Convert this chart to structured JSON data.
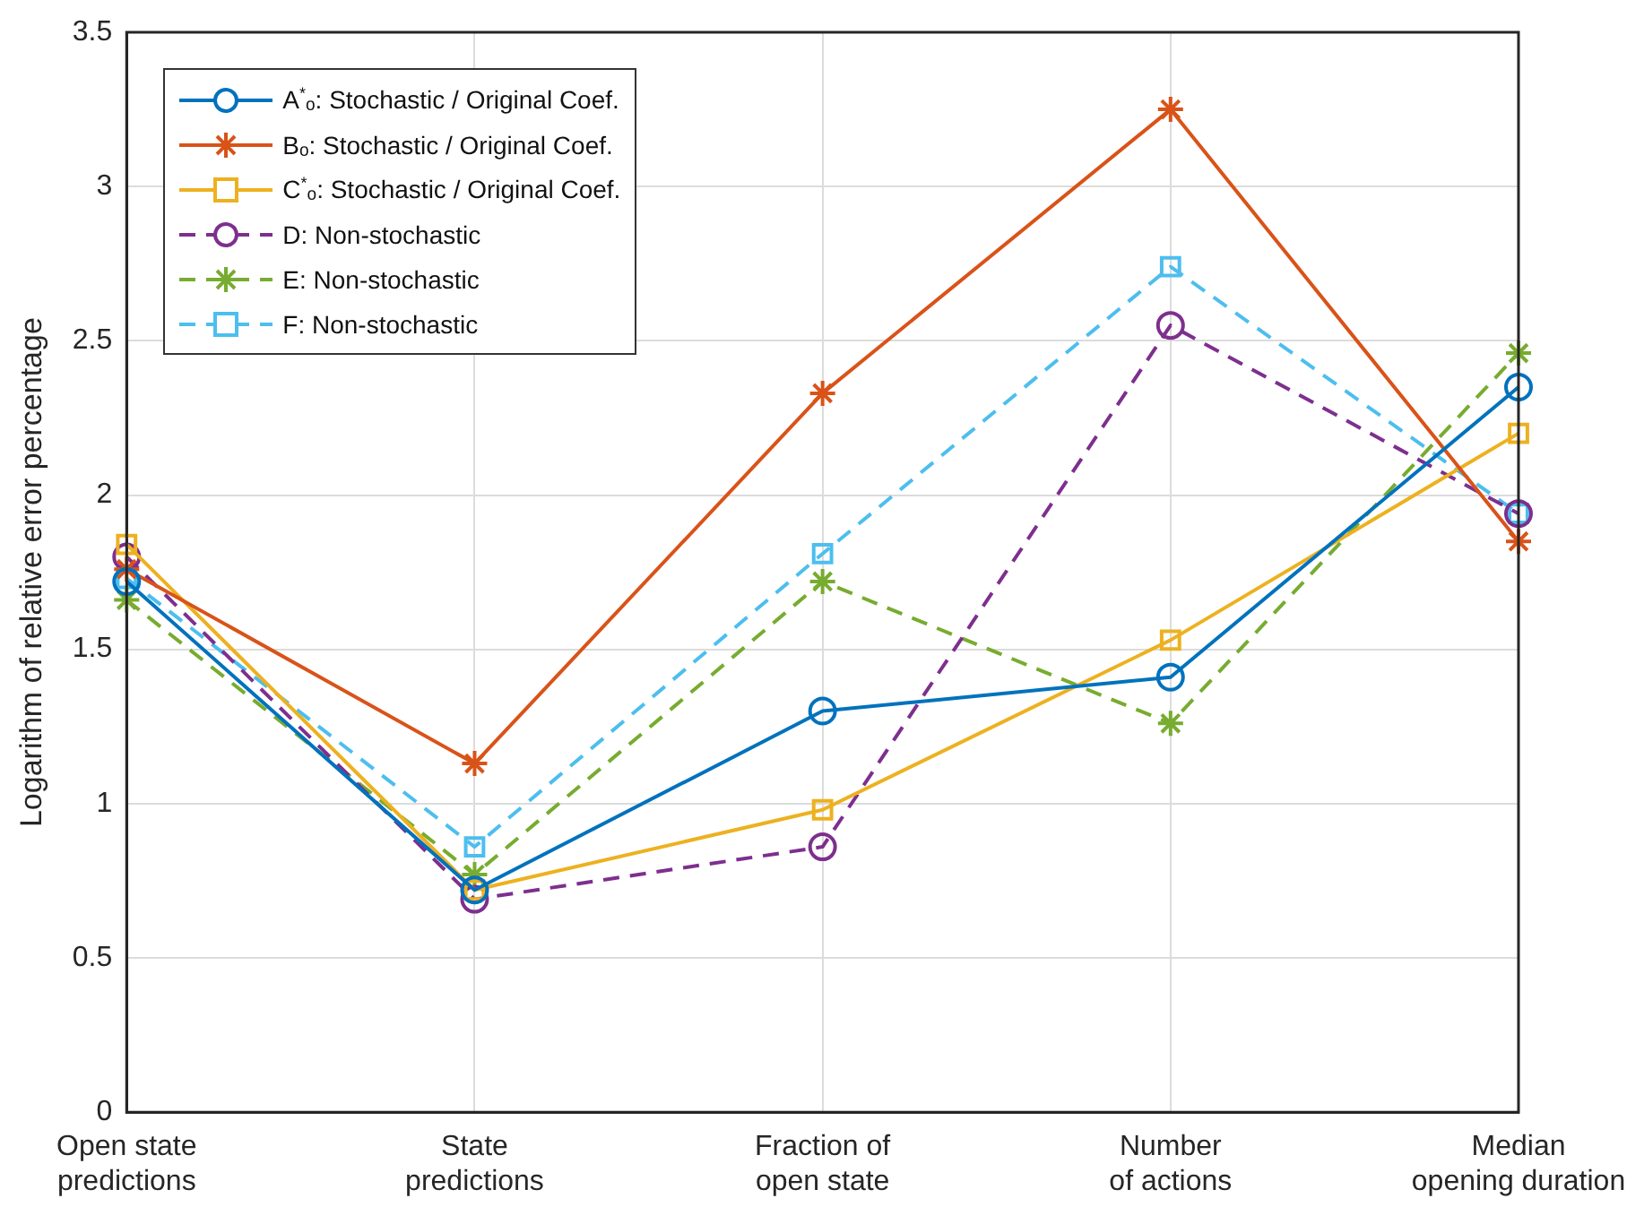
{
  "chart_data": {
    "type": "line",
    "ylabel": "Logarithm of relative error percentage",
    "categories": [
      "Open state\npredictions",
      "State\npredictions",
      "Fraction of\nopen state",
      "Number\nof actions",
      "Median\nopening duration"
    ],
    "ylim": [
      0,
      3.5
    ],
    "yticks": [
      0,
      0.5,
      1,
      1.5,
      2,
      2.5,
      3,
      3.5
    ],
    "grid": true,
    "legend": "top left",
    "series": [
      {
        "name": "A$^{*}$ₒ: Stochastic / Original Coef.",
        "color": "#0072bd",
        "marker": "circle",
        "line_style": "solid",
        "values": [
          1.72,
          0.72,
          1.3,
          1.41,
          2.35
        ]
      },
      {
        "name": "Bₒ: Stochastic / Original Coef.",
        "color": "#d95319",
        "marker": "cross",
        "line_style": "solid",
        "values": [
          1.76,
          1.13,
          2.33,
          3.25,
          1.85
        ]
      },
      {
        "name": "C$^{*}$ₒ: Stochastic / Original Coef.",
        "color": "#edb120",
        "marker": "square",
        "line_style": "solid",
        "values": [
          1.84,
          0.72,
          0.98,
          1.53,
          2.2
        ]
      },
      {
        "name": "D: Non-stochastic",
        "color": "#7e2f8e",
        "marker": "circle",
        "line_style": "dashed",
        "values": [
          1.8,
          0.69,
          0.86,
          2.55,
          1.94
        ]
      },
      {
        "name": "E: Non-stochastic",
        "color": "#77ac30",
        "marker": "cross",
        "line_style": "dashed",
        "values": [
          1.66,
          0.77,
          1.72,
          1.26,
          2.46
        ]
      },
      {
        "name": "F: Non-stochastic",
        "color": "#4dbeee",
        "marker": "square",
        "line_style": "dashed",
        "values": [
          1.73,
          0.86,
          1.81,
          2.74,
          1.94
        ]
      }
    ]
  }
}
